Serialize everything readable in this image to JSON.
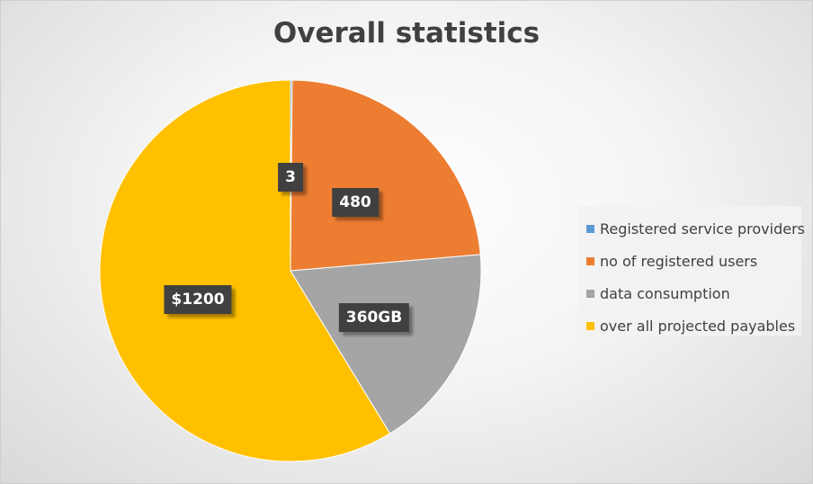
{
  "chart_data": {
    "type": "pie",
    "title": "Overall statistics",
    "legend_position": "right",
    "categories": [
      "Registered service providers",
      "no of registered users",
      "data consumption",
      "over all projected payables"
    ],
    "values": [
      3,
      480,
      360,
      1200
    ],
    "data_labels": [
      "3",
      "480",
      "360GB",
      "$1200"
    ],
    "colors": [
      "#5B9BD5",
      "#ED7D31",
      "#A5A5A5",
      "#FFC000"
    ]
  }
}
